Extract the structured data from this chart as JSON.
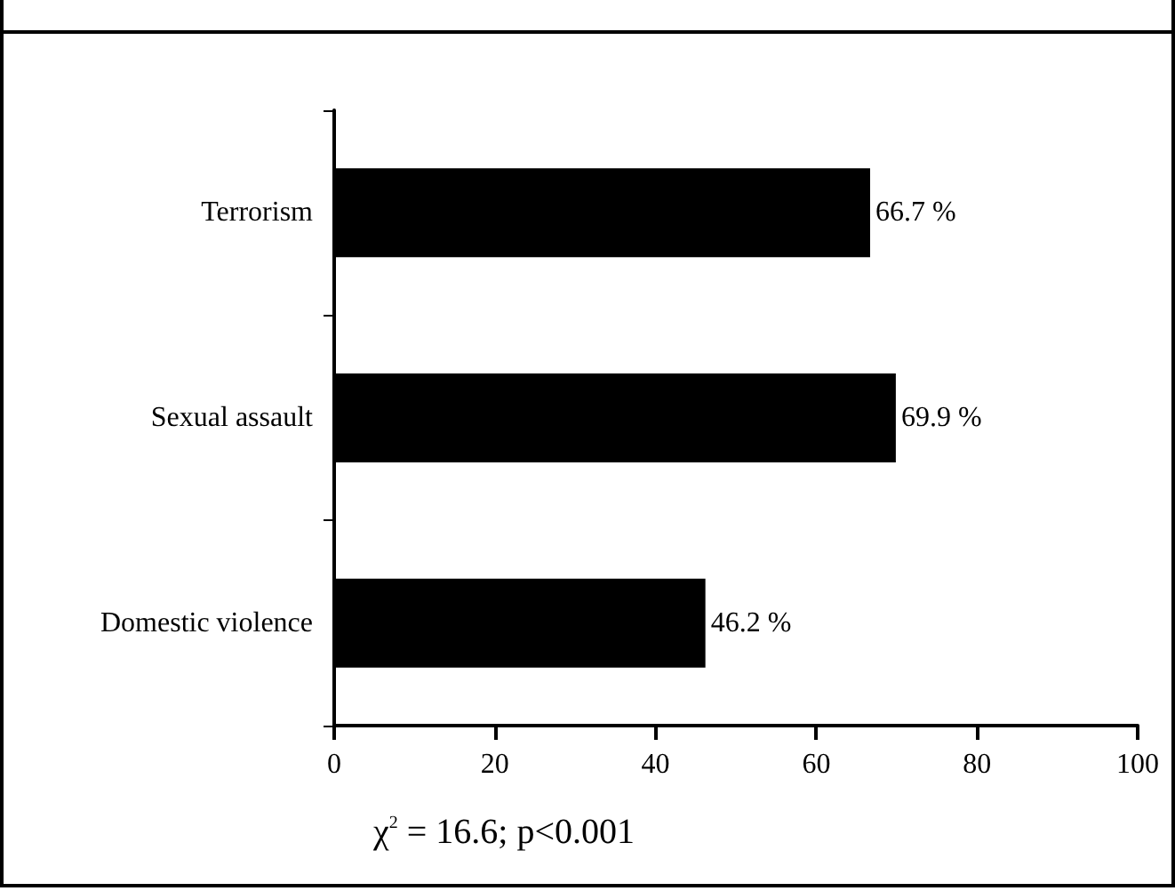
{
  "chart_data": {
    "type": "bar",
    "orientation": "horizontal",
    "categories": [
      "Terrorism",
      "Sexual assault",
      "Domestic violence"
    ],
    "values": [
      66.7,
      69.9,
      46.2
    ],
    "value_labels": [
      "66.7 %",
      "69.9 %",
      "46.2 %"
    ],
    "color": "#000000",
    "xlim": [
      0,
      100
    ],
    "xticks": [
      0,
      20,
      40,
      60,
      80,
      100
    ],
    "annotations": [
      "χ$^{2}$ = 16.6; p<0.001"
    ]
  }
}
